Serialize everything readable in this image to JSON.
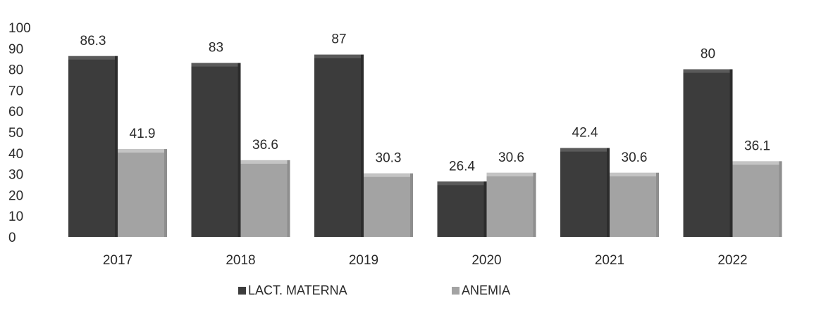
{
  "chart_data": {
    "type": "bar",
    "categories": [
      "2017",
      "2018",
      "2019",
      "2020",
      "2021",
      "2022"
    ],
    "series": [
      {
        "name": "LACT. MATERNA",
        "values": [
          86.3,
          83,
          87,
          26.4,
          42.4,
          80
        ],
        "labels": [
          "86.3",
          "83",
          "87",
          "26.4",
          "42.4",
          "80"
        ],
        "color": "#3c3c3c"
      },
      {
        "name": "ANEMIA",
        "values": [
          41.9,
          36.6,
          30.3,
          30.6,
          30.6,
          36.1
        ],
        "labels": [
          "41.9",
          "36.6",
          "30.3",
          "30.6",
          "30.6",
          "36.1"
        ],
        "color": "#a3a3a3"
      }
    ],
    "yticks": [
      "0",
      "10",
      "20",
      "30",
      "40",
      "50",
      "60",
      "70",
      "80",
      "90",
      "100"
    ],
    "ylim": [
      0,
      100
    ],
    "legend_position": "bottom",
    "grid": false
  }
}
